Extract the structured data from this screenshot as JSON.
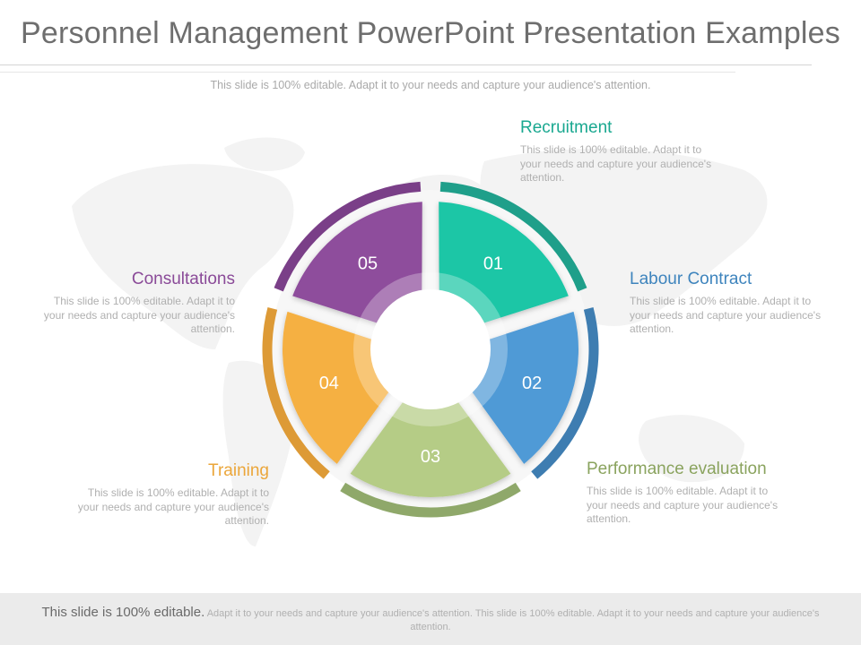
{
  "slide": {
    "title": "Personnel Management PowerPoint Presentation Examples",
    "subtitle": "This slide is 100% editable. Adapt it to your needs and capture your audience's attention."
  },
  "segments": [
    {
      "number": "01",
      "title": "Recruitment",
      "text": "This slide is 100% editable. Adapt it to your needs and capture your audience's attention.",
      "color": "#1dc6a6",
      "ring_color": "#1f9f8a",
      "title_color": "#1aa890"
    },
    {
      "number": "02",
      "title": "Labour Contract",
      "text": "This slide is 100% editable. Adapt it to your needs and capture your audience's attention.",
      "color": "#4f9ad6",
      "ring_color": "#3e7db1",
      "title_color": "#3e84bd"
    },
    {
      "number": "03",
      "title": "Performance evaluation",
      "text": "This slide is 100% editable. Adapt it to your needs and capture your audience's attention.",
      "color": "#b5cc86",
      "ring_color": "#8fa86a",
      "title_color": "#8aa35e"
    },
    {
      "number": "04",
      "title": "Training",
      "text": "This slide is 100% editable. Adapt it to your needs and capture your audience's attention.",
      "color": "#f5b042",
      "ring_color": "#dd9a36",
      "title_color": "#eba63a"
    },
    {
      "number": "05",
      "title": "Consultations",
      "text": "This slide is 100% editable. Adapt it to your needs and capture your audience's attention.",
      "color": "#8e4e9c",
      "ring_color": "#7a3f88",
      "title_color": "#8a4a98"
    }
  ],
  "footer": {
    "lead": "This slide is 100% editable.",
    "text": "Adapt it to your needs and capture your audience's attention. This slide is 100% editable. Adapt it to your needs and capture your audience's attention."
  }
}
